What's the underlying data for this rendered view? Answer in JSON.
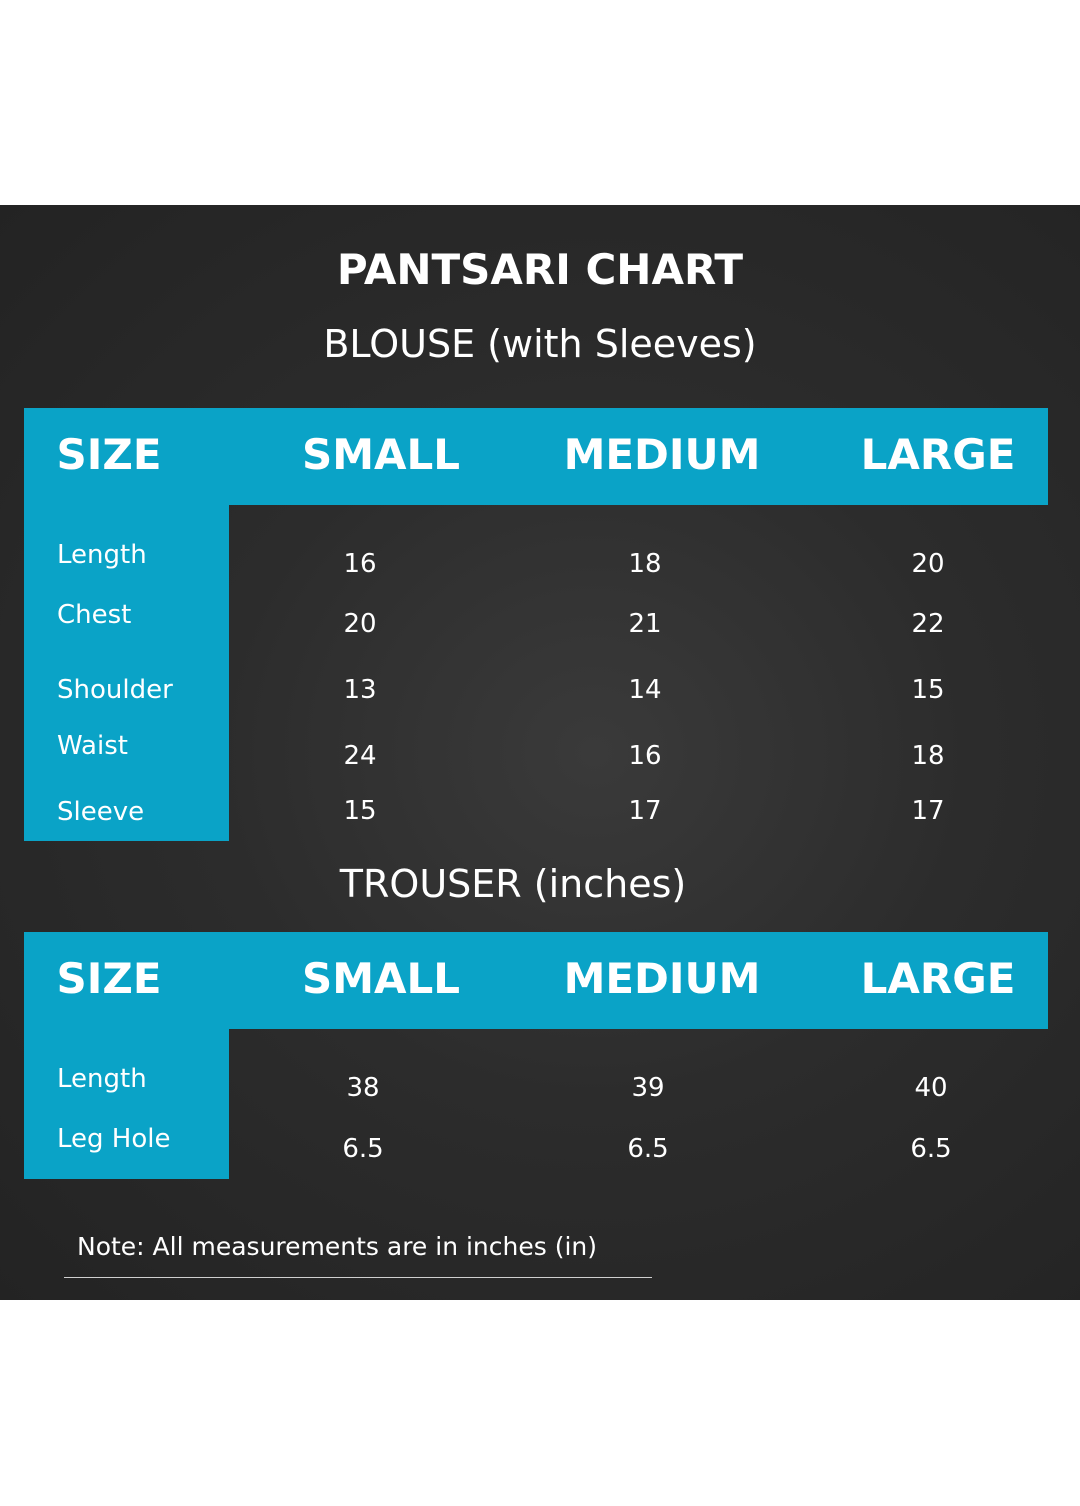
{
  "title": "PANTSARI CHART",
  "blouse": {
    "heading": "BLOUSE (with Sleeves)",
    "headers": [
      "SIZE",
      "SMALL",
      "MEDIUM",
      "LARGE"
    ],
    "rows": [
      {
        "label": "Length",
        "values": [
          "16",
          "18",
          "20"
        ]
      },
      {
        "label": "Chest",
        "values": [
          "20",
          "21",
          "22"
        ]
      },
      {
        "label": "Shoulder",
        "values": [
          "13",
          "14",
          "15"
        ]
      },
      {
        "label": "Waist",
        "values": [
          "24",
          "16",
          "18"
        ]
      },
      {
        "label": "Sleeve",
        "values": [
          "15",
          "17",
          "17"
        ]
      }
    ]
  },
  "trouser": {
    "heading": "TROUSER (inches)",
    "headers": [
      "SIZE",
      "SMALL",
      "MEDIUM",
      "LARGE"
    ],
    "rows": [
      {
        "label": "Length",
        "values": [
          "38",
          "39",
          "40"
        ]
      },
      {
        "label": "Leg Hole",
        "values": [
          "6.5",
          "6.5",
          "6.5"
        ]
      }
    ]
  },
  "note": "Note: All measurements are in inches (in)",
  "colors": {
    "accent": "#0aa3c7",
    "background": "#2a2a2a"
  }
}
